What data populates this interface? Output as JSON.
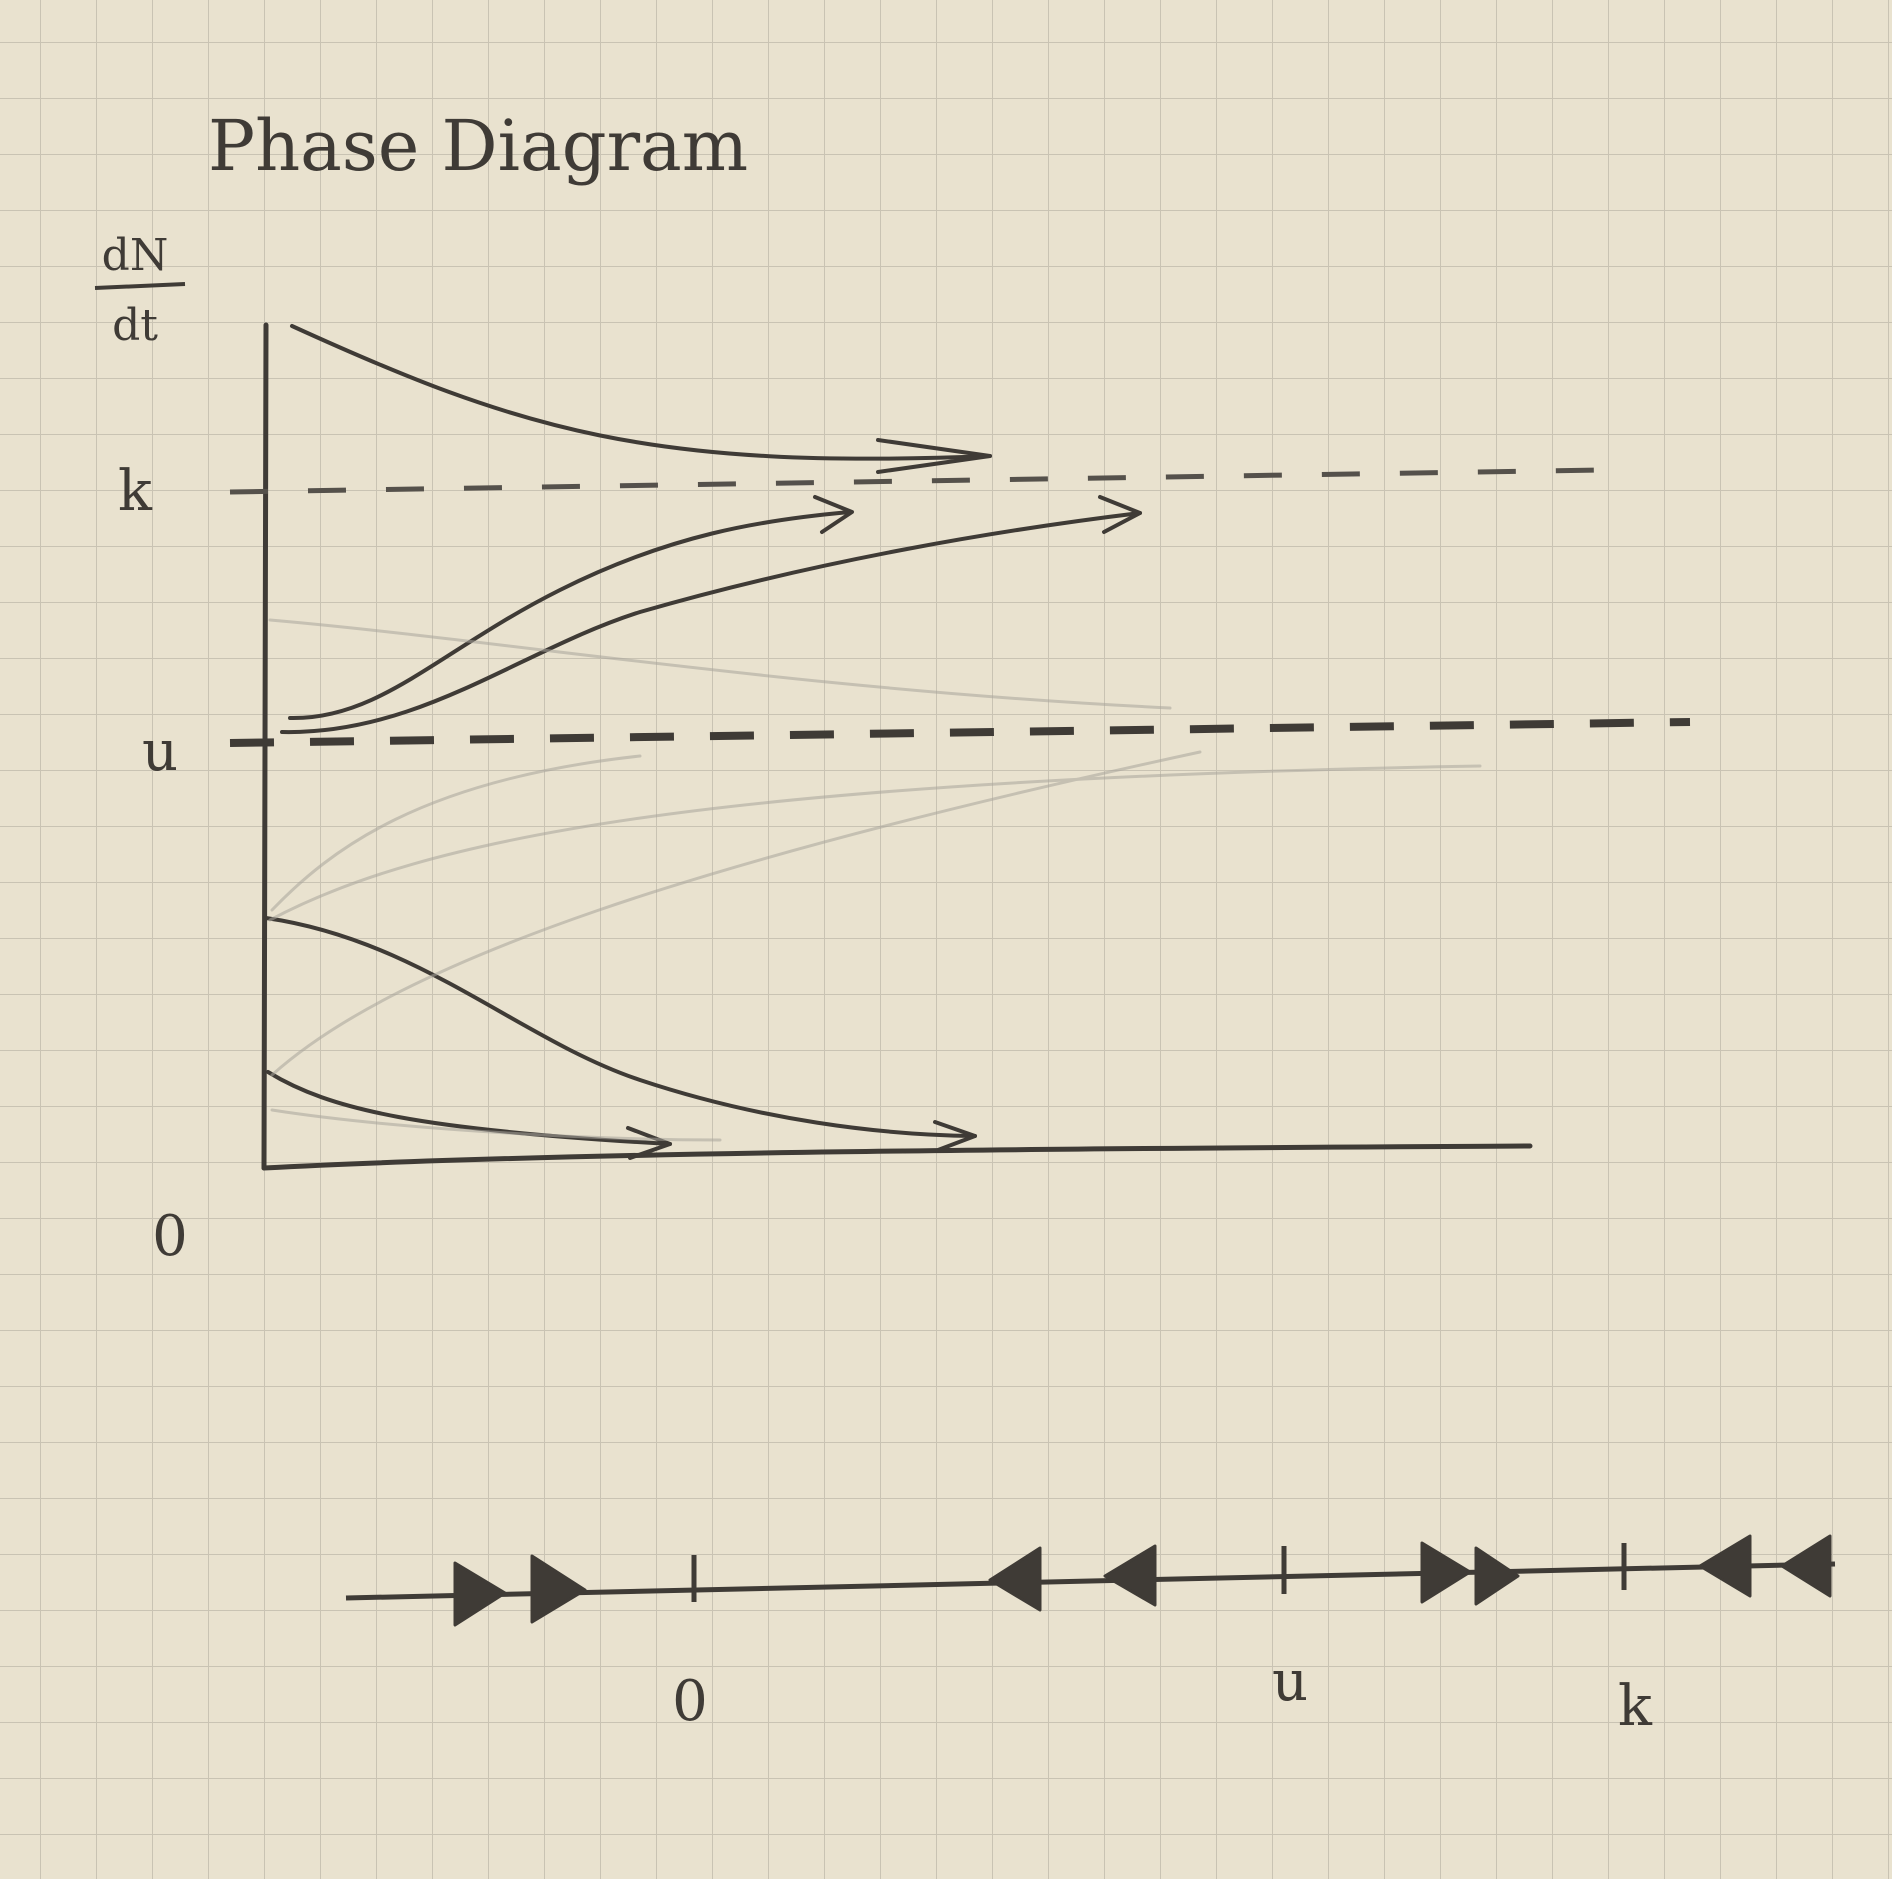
{
  "title": "Phase Diagram",
  "y_axis_label": {
    "numerator": "dN",
    "denominator": "dt"
  },
  "y_axis_labels": {
    "k": "k",
    "u": "u",
    "zero": "0"
  },
  "phase_line": {
    "labels": {
      "zero": "0",
      "u": "u",
      "k": "k"
    },
    "arrows": {
      "below_zero": "right",
      "between_zero_and_u": "left",
      "between_u_and_k": "right",
      "above_k": "left"
    }
  },
  "colors": {
    "paper": "#e9e2cf",
    "grid": "#c9c3b3",
    "pencil": "#3f3b36",
    "pencil_faint": "#a9a59c"
  }
}
